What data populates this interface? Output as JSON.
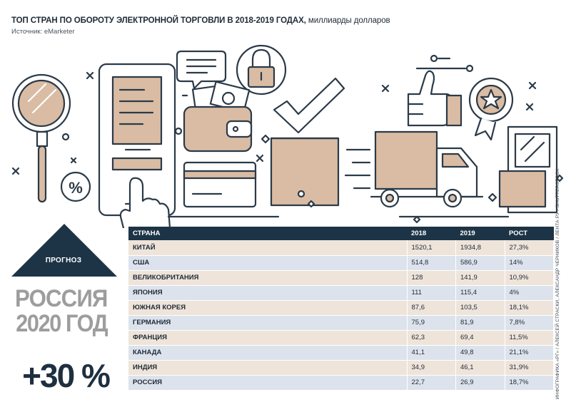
{
  "header": {
    "title_bold": "ТОП СТРАН ПО ОБОРОТУ ЭЛЕКТРОННОЙ ТОРГОВЛИ В 2018-2019 ГОДАХ,",
    "title_light": "миллиарды долларов",
    "source": "Источник: eMarketer"
  },
  "illustration": {
    "percent_symbol": "%"
  },
  "forecast": {
    "label": "ПРОГНОЗ",
    "country": "РОССИЯ",
    "year": "2020 ГОД",
    "growth": "+30 %"
  },
  "credit": "ИНФОГРАФИКА «РГ» / АЛЕКСЕЙ СТРАСКИ, АЛЕКСАНДР ЧЕРНИКОВ / ЛЕНТА РУ / SHUTTERSTOCK",
  "chart_data": {
    "type": "table",
    "columns": [
      "СТРАНА",
      "2018",
      "2019",
      "РОСТ"
    ],
    "rows": [
      {
        "country": "КИТАЙ",
        "y2018": "1520,1",
        "y2019": "1934,8",
        "growth": "27,3%"
      },
      {
        "country": "США",
        "y2018": "514,8",
        "y2019": "586,9",
        "growth": "14%"
      },
      {
        "country": "ВЕЛИКОБРИТАНИЯ",
        "y2018": "128",
        "y2019": "141,9",
        "growth": "10,9%"
      },
      {
        "country": "ЯПОНИЯ",
        "y2018": "111",
        "y2019": "115,4",
        "growth": "4%"
      },
      {
        "country": "ЮЖНАЯ КОРЕЯ",
        "y2018": "87,6",
        "y2019": "103,5",
        "growth": "18,1%"
      },
      {
        "country": "ГЕРМАНИЯ",
        "y2018": "75,9",
        "y2019": "81,9",
        "growth": "7,8%"
      },
      {
        "country": "ФРАНЦИЯ",
        "y2018": "62,3",
        "y2019": "69,4",
        "growth": "11,5%"
      },
      {
        "country": "КАНАДА",
        "y2018": "41,1",
        "y2019": "49,8",
        "growth": "21,1%"
      },
      {
        "country": "ИНДИЯ",
        "y2018": "34,9",
        "y2019": "46,1",
        "growth": "31,9%"
      },
      {
        "country": "РОССИЯ",
        "y2018": "22,7",
        "y2019": "26,9",
        "growth": "18,7%"
      }
    ]
  },
  "colors": {
    "navy": "#1d3446",
    "beige": "#d9bca3",
    "row_odd": "#efe4da",
    "row_even": "#dde3ec",
    "gray_text": "#9d9d9d"
  }
}
